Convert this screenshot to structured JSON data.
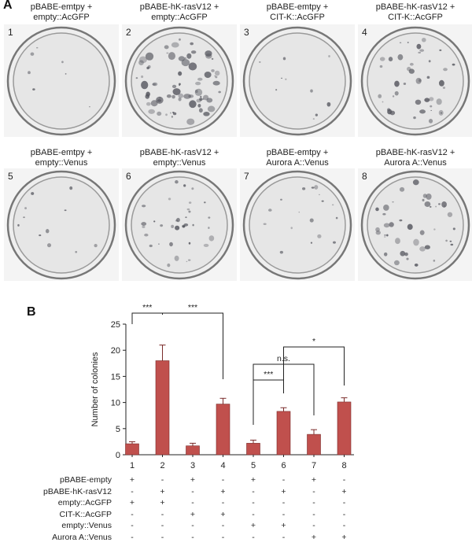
{
  "panel_a": {
    "letter": "A",
    "dishes": [
      {
        "number": "1",
        "line1": "pBABE-emtpy +",
        "line2": "empty::AcGFP",
        "colony_level": 0.05
      },
      {
        "number": "2",
        "line1": "pBABE-hK-rasV12 +",
        "line2": "empty::AcGFP",
        "colony_level": 1.0
      },
      {
        "number": "3",
        "line1": "pBABE-emtpy +",
        "line2": "CIT-K::AcGFP",
        "colony_level": 0.1
      },
      {
        "number": "4",
        "line1": "pBABE-hK-rasV12 +",
        "line2": "CIT-K::AcGFP",
        "colony_level": 0.55
      },
      {
        "number": "5",
        "line1": "pBABE-emtpy +",
        "line2": "empty::Venus",
        "colony_level": 0.12
      },
      {
        "number": "6",
        "line1": "pBABE-hK-rasV12 +",
        "line2": "empty::Venus",
        "colony_level": 0.45
      },
      {
        "number": "7",
        "line1": "pBABE-emtpy +",
        "line2": "Aurora A::Venus",
        "colony_level": 0.2
      },
      {
        "number": "8",
        "line1": "pBABE-hK-rasV12 +",
        "line2": "Aurora A::Venus",
        "colony_level": 0.55
      }
    ]
  },
  "panel_b": {
    "letter": "B",
    "ylabel": "Number of colonies",
    "yticks": [
      "0",
      "5",
      "10",
      "15",
      "20",
      "25"
    ],
    "sig_labels": [
      "***",
      "***",
      "***",
      "n.s.",
      "*"
    ],
    "conditions_table": {
      "rows": [
        {
          "label": "pBABE-empty",
          "signs": [
            "+",
            "-",
            "+",
            "-",
            "+",
            "-",
            "+",
            "-"
          ]
        },
        {
          "label": "pBABE-hK-rasV12",
          "signs": [
            "-",
            "+",
            "-",
            "+",
            "-",
            "+",
            "-",
            "+"
          ]
        },
        {
          "label": "empty::AcGFP",
          "signs": [
            "+",
            "+",
            "-",
            "-",
            "-",
            "-",
            "-",
            "-"
          ]
        },
        {
          "label": "CIT-K::AcGFP",
          "signs": [
            "-",
            "-",
            "+",
            "+",
            "-",
            "-",
            "-",
            "-"
          ]
        },
        {
          "label": "empty::Venus",
          "signs": [
            "-",
            "-",
            "-",
            "-",
            "+",
            "+",
            "-",
            "-"
          ]
        },
        {
          "label": "Aurora A::Venus",
          "signs": [
            "-",
            "-",
            "-",
            "-",
            "-",
            "-",
            "+",
            "+"
          ]
        }
      ]
    }
  },
  "chart_data": {
    "type": "bar",
    "categories": [
      "1",
      "2",
      "3",
      "4",
      "5",
      "6",
      "7",
      "8"
    ],
    "values": [
      2.1,
      18.0,
      1.7,
      9.7,
      2.2,
      8.3,
      3.9,
      10.1
    ],
    "errors": [
      0.4,
      3.0,
      0.5,
      1.1,
      0.6,
      0.7,
      0.9,
      0.8
    ],
    "ylabel": "Number of colonies",
    "ylim": [
      0,
      25
    ],
    "bar_color": "#c0504d",
    "comparisons": [
      {
        "from": "1",
        "to": "2",
        "label": "***"
      },
      {
        "from": "2",
        "to": "4",
        "label": "***"
      },
      {
        "from": "5",
        "to": "6",
        "label": "***"
      },
      {
        "from": "5",
        "to": "7",
        "label": "n.s."
      },
      {
        "from": "6",
        "to": "8",
        "label": "*"
      }
    ]
  }
}
